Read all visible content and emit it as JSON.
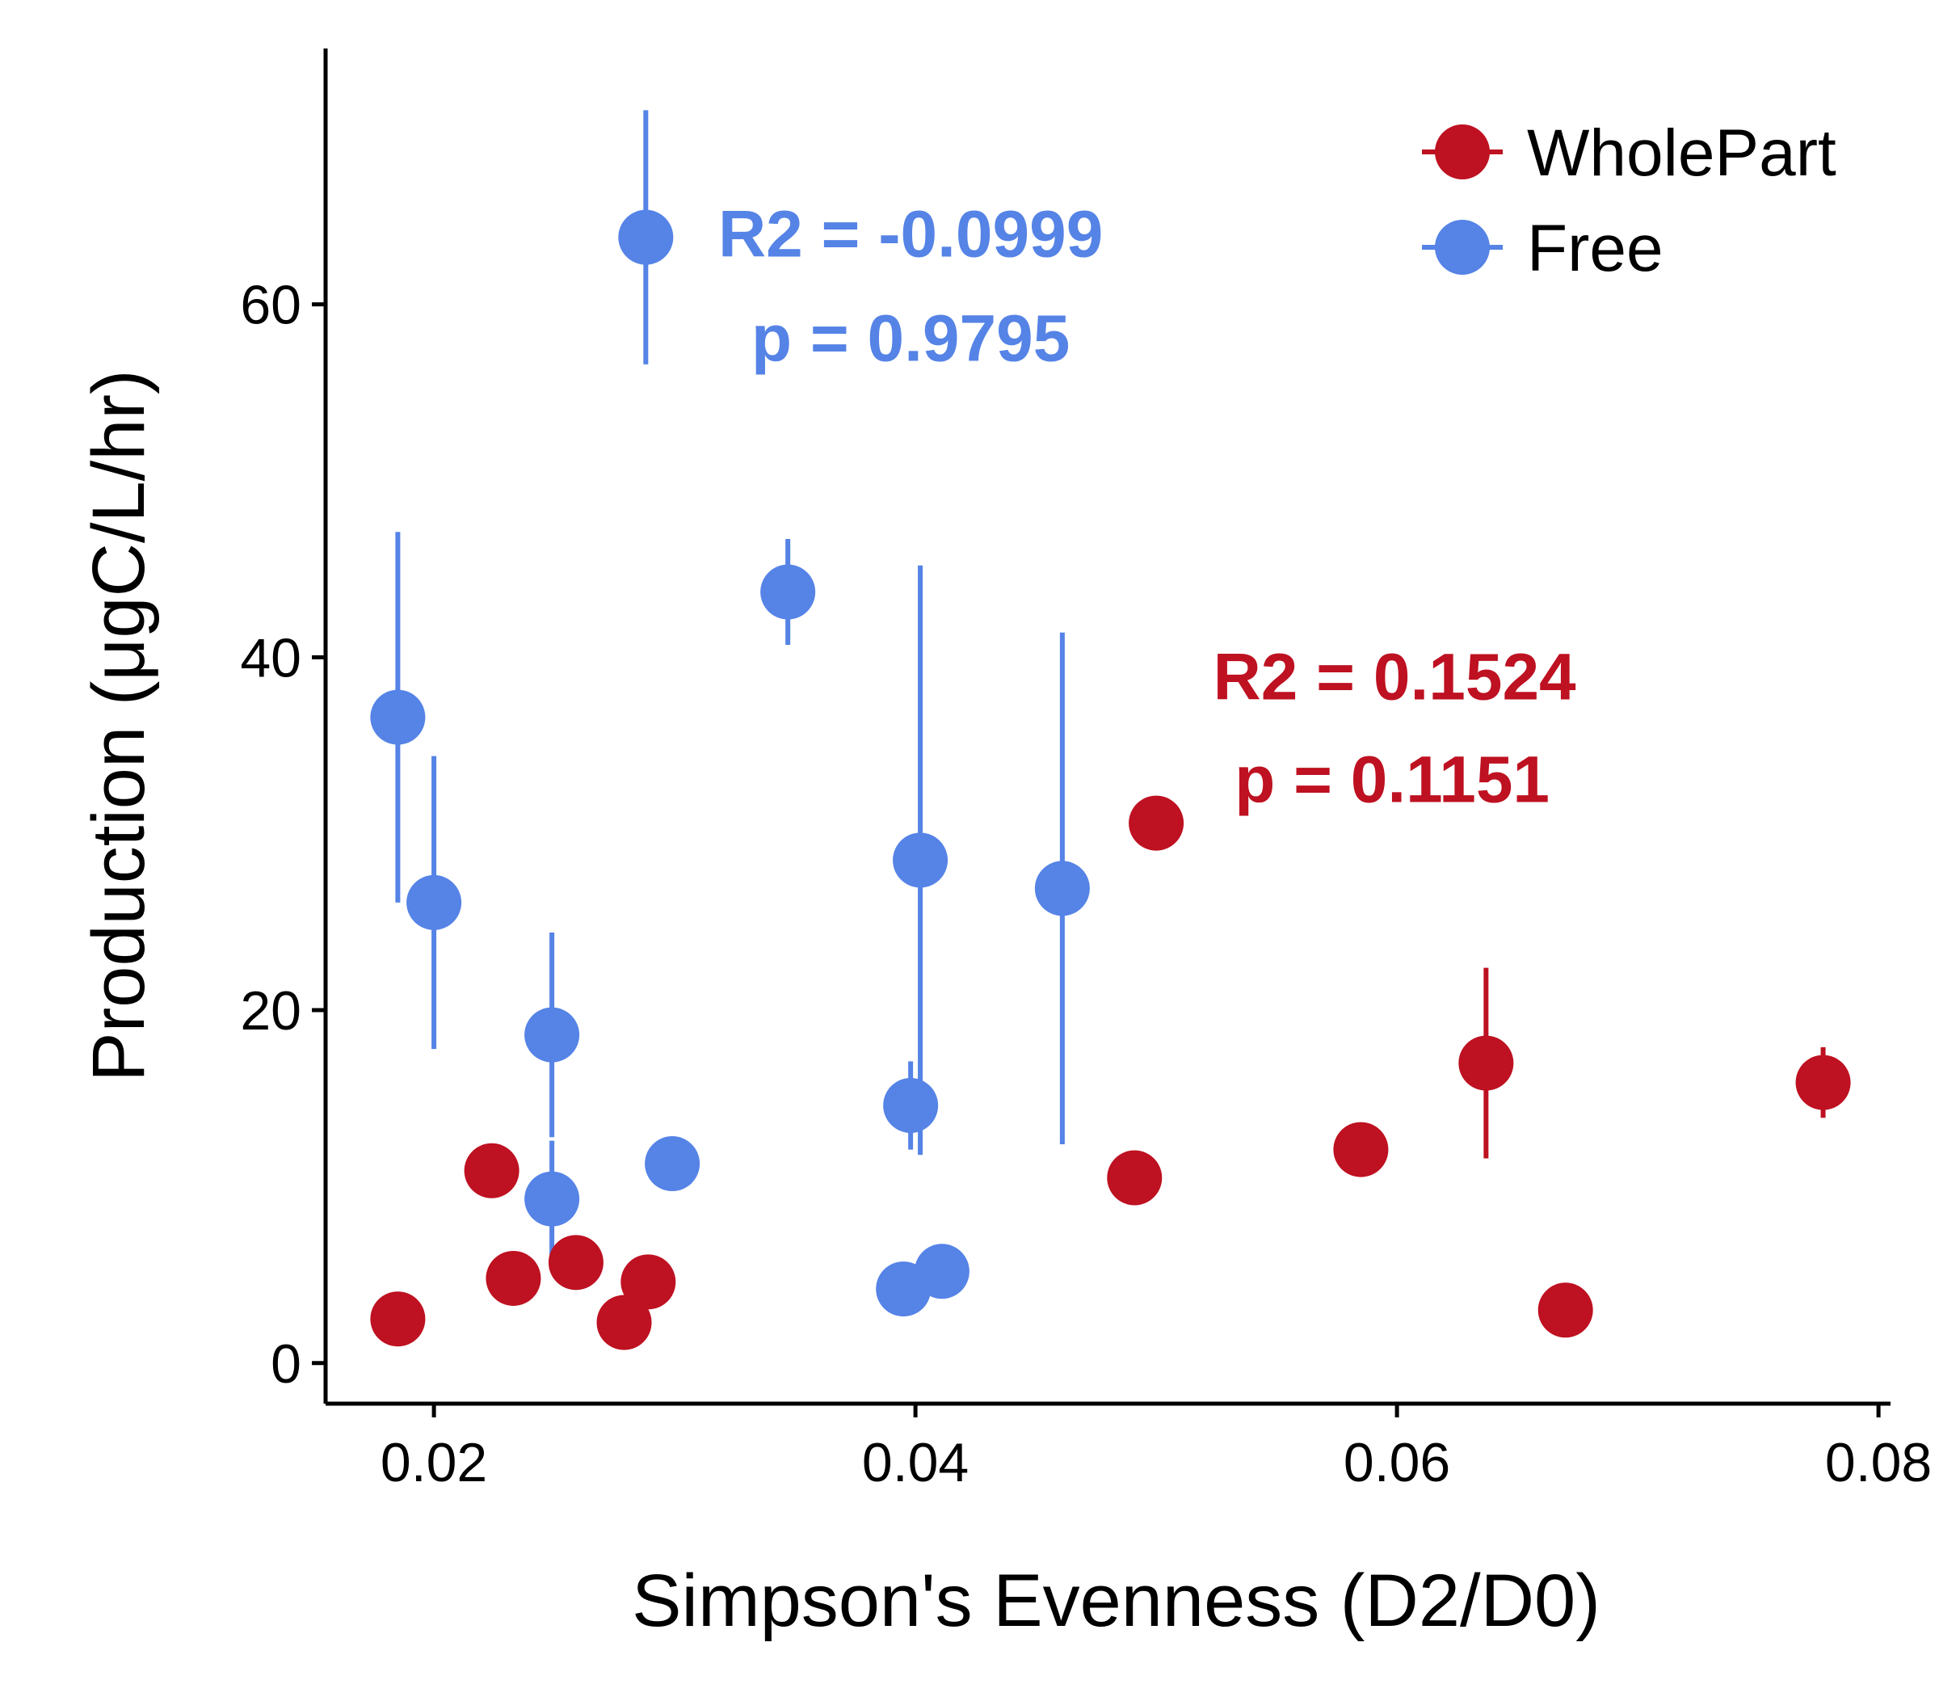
{
  "chart_data": {
    "type": "scatter",
    "title": "",
    "xlabel": "Simpson's Evenness (D2/D0)",
    "ylabel": "Production (μgC/L/hr)",
    "xlim": [
      0.0155,
      0.0805
    ],
    "ylim": [
      -2.3,
      74.5
    ],
    "xticks": [
      0.02,
      0.04,
      0.06,
      0.08
    ],
    "xtick_labels": [
      "0.02",
      "0.04",
      "0.06",
      "0.08"
    ],
    "yticks": [
      0,
      20,
      40,
      60
    ],
    "ytick_labels": [
      "0",
      "20",
      "40",
      "60"
    ],
    "grid": false,
    "legend_position": "top-right",
    "series": [
      {
        "name": "WholePart",
        "color": "#BE1121",
        "points": [
          {
            "x": 0.0185,
            "y": 2.5,
            "ymin": 2.5,
            "ymax": 2.5
          },
          {
            "x": 0.0224,
            "y": 10.9,
            "ymin": 10.9,
            "ymax": 10.9
          },
          {
            "x": 0.0233,
            "y": 4.8,
            "ymin": 4.8,
            "ymax": 4.8
          },
          {
            "x": 0.0259,
            "y": 5.7,
            "ymin": 5.7,
            "ymax": 5.7
          },
          {
            "x": 0.0279,
            "y": 2.3,
            "ymin": 2.3,
            "ymax": 2.3
          },
          {
            "x": 0.0289,
            "y": 4.6,
            "ymin": 4.6,
            "ymax": 4.6
          },
          {
            "x": 0.0491,
            "y": 10.5,
            "ymin": 10.5,
            "ymax": 10.5
          },
          {
            "x": 0.05,
            "y": 30.6,
            "ymin": 30.6,
            "ymax": 30.6
          },
          {
            "x": 0.0585,
            "y": 12.1,
            "ymin": 12.1,
            "ymax": 12.1
          },
          {
            "x": 0.0637,
            "y": 17.0,
            "ymin": 11.6,
            "ymax": 22.4
          },
          {
            "x": 0.067,
            "y": 3.0,
            "ymin": 3.0,
            "ymax": 3.0
          },
          {
            "x": 0.0777,
            "y": 15.9,
            "ymin": 13.9,
            "ymax": 17.9
          }
        ]
      },
      {
        "name": "Free",
        "color": "#5583E6",
        "points": [
          {
            "x": 0.0185,
            "y": 36.6,
            "ymin": 26.1,
            "ymax": 47.1
          },
          {
            "x": 0.02,
            "y": 26.1,
            "ymin": 17.8,
            "ymax": 34.4
          },
          {
            "x": 0.0249,
            "y": 18.6,
            "ymin": 12.8,
            "ymax": 24.4
          },
          {
            "x": 0.0249,
            "y": 9.3,
            "ymin": 6.0,
            "ymax": 12.6
          },
          {
            "x": 0.0288,
            "y": 63.8,
            "ymin": 56.6,
            "ymax": 71.0
          },
          {
            "x": 0.0299,
            "y": 11.3,
            "ymin": 11.3,
            "ymax": 11.3
          },
          {
            "x": 0.0347,
            "y": 43.7,
            "ymin": 40.7,
            "ymax": 46.7
          },
          {
            "x": 0.0395,
            "y": 4.2,
            "ymin": 4.2,
            "ymax": 4.2
          },
          {
            "x": 0.0398,
            "y": 14.6,
            "ymin": 12.1,
            "ymax": 17.1
          },
          {
            "x": 0.0402,
            "y": 28.5,
            "ymin": 11.8,
            "ymax": 45.2
          },
          {
            "x": 0.0411,
            "y": 5.2,
            "ymin": 5.2,
            "ymax": 5.2
          },
          {
            "x": 0.0461,
            "y": 26.9,
            "ymin": 12.4,
            "ymax": 41.4
          }
        ]
      }
    ],
    "annotations": [
      {
        "text": "R2 = -0.0999",
        "series": "Free",
        "x": 0.0398,
        "y": 62.7
      },
      {
        "text": "p = 0.9795",
        "series": "Free",
        "x": 0.0398,
        "y": 56.8
      },
      {
        "text": "R2 = 0.1524",
        "series": "WholePart",
        "x": 0.0599,
        "y": 37.6
      },
      {
        "text": "p = 0.1151",
        "series": "WholePart",
        "x": 0.0598,
        "y": 31.8
      }
    ]
  }
}
